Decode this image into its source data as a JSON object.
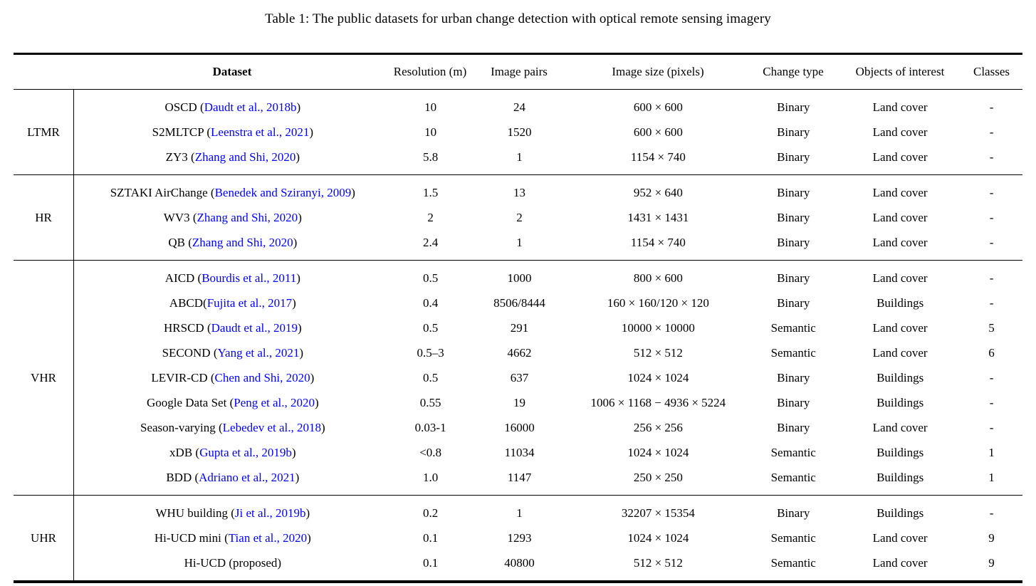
{
  "colors": {
    "citation_blue": "#0000FF",
    "text": "#000000"
  },
  "title": "Table 1: The public datasets for urban change detection with optical remote sensing imagery",
  "table": {
    "headers": [
      "Dataset",
      "Resolution (m)",
      "Image pairs",
      "Image size (pixels)",
      "Change type",
      "Objects of interest",
      "Classes"
    ],
    "groups": [
      {
        "label": "LTMR",
        "rows": [
          {
            "dataset_prefix": "OSCD (",
            "citation": "Daudt et al., 2018b",
            "dataset_suffix": ")",
            "resolution": "10",
            "image_pairs": "24",
            "image_size": "600 × 600",
            "change_type": "Binary",
            "objects": "Land cover",
            "classes": "-"
          },
          {
            "dataset_prefix": "S2MLTCP (",
            "citation": "Leenstra et al., 2021",
            "dataset_suffix": ")",
            "resolution": "10",
            "image_pairs": "1520",
            "image_size": "600 × 600",
            "change_type": "Binary",
            "objects": "Land cover",
            "classes": "-"
          },
          {
            "dataset_prefix": "ZY3 (",
            "citation": "Zhang and Shi, 2020",
            "dataset_suffix": ")",
            "resolution": "5.8",
            "image_pairs": "1",
            "image_size": "1154 × 740",
            "change_type": "Binary",
            "objects": "Land cover",
            "classes": "-"
          }
        ]
      },
      {
        "label": "HR",
        "rows": [
          {
            "dataset_prefix": "SZTAKI AirChange (",
            "citation": "Benedek and Sziranyi, 2009",
            "dataset_suffix": ")",
            "resolution": "1.5",
            "image_pairs": "13",
            "image_size": "952 × 640",
            "change_type": "Binary",
            "objects": "Land cover",
            "classes": "-"
          },
          {
            "dataset_prefix": "WV3 (",
            "citation": "Zhang and Shi, 2020",
            "dataset_suffix": ")",
            "resolution": "2",
            "image_pairs": "2",
            "image_size": "1431 × 1431",
            "change_type": "Binary",
            "objects": "Land cover",
            "classes": "-"
          },
          {
            "dataset_prefix": "QB (",
            "citation": "Zhang and Shi, 2020",
            "dataset_suffix": ")",
            "resolution": "2.4",
            "image_pairs": "1",
            "image_size": "1154 × 740",
            "change_type": "Binary",
            "objects": "Land cover",
            "classes": "-"
          }
        ]
      },
      {
        "label": "VHR",
        "rows": [
          {
            "dataset_prefix": "AICD (",
            "citation": "Bourdis et al., 2011",
            "dataset_suffix": ")",
            "resolution": "0.5",
            "image_pairs": "1000",
            "image_size": "800 × 600",
            "change_type": "Binary",
            "objects": "Land cover",
            "classes": "-"
          },
          {
            "dataset_prefix": "ABCD(",
            "citation": "Fujita et al., 2017",
            "dataset_suffix": ")",
            "resolution": "0.4",
            "image_pairs": "8506/8444",
            "image_size": "160 × 160/120 × 120",
            "change_type": "Binary",
            "objects": "Buildings",
            "classes": "-"
          },
          {
            "dataset_prefix": "HRSCD (",
            "citation": "Daudt et al., 2019",
            "dataset_suffix": ")",
            "resolution": "0.5",
            "image_pairs": "291",
            "image_size": "10000 × 10000",
            "change_type": "Semantic",
            "objects": "Land cover",
            "classes": "5"
          },
          {
            "dataset_prefix": "SECOND (",
            "citation": "Yang et al., 2021",
            "dataset_suffix": ")",
            "resolution": "0.5–3",
            "image_pairs": "4662",
            "image_size": "512 × 512",
            "change_type": "Semantic",
            "objects": "Land cover",
            "classes": "6"
          },
          {
            "dataset_prefix": "LEVIR-CD (",
            "citation": "Chen and Shi, 2020",
            "dataset_suffix": ")",
            "resolution": "0.5",
            "image_pairs": "637",
            "image_size": "1024 × 1024",
            "change_type": "Binary",
            "objects": "Buildings",
            "classes": "-"
          },
          {
            "dataset_prefix": "Google Data Set (",
            "citation": "Peng et al., 2020",
            "dataset_suffix": ")",
            "resolution": "0.55",
            "image_pairs": "19",
            "image_size": "1006 × 1168 − 4936 × 5224",
            "change_type": "Binary",
            "objects": "Buildings",
            "classes": "-"
          },
          {
            "dataset_prefix": "Season-varying (",
            "citation": "Lebedev et al., 2018",
            "dataset_suffix": ")",
            "resolution": "0.03-1",
            "image_pairs": "16000",
            "image_size": "256 × 256",
            "change_type": "Binary",
            "objects": "Land cover",
            "classes": "-"
          },
          {
            "dataset_prefix": "xDB (",
            "citation": "Gupta et al., 2019b",
            "dataset_suffix": ")",
            "resolution": "<0.8",
            "image_pairs": "11034",
            "image_size": "1024 × 1024",
            "change_type": "Semantic",
            "objects": "Buildings",
            "classes": "1"
          },
          {
            "dataset_prefix": "BDD (",
            "citation": "Adriano et al., 2021",
            "dataset_suffix": ")",
            "resolution": "1.0",
            "image_pairs": "1147",
            "image_size": "250 × 250",
            "change_type": "Semantic",
            "objects": "Buildings",
            "classes": "1"
          }
        ]
      },
      {
        "label": "UHR",
        "rows": [
          {
            "dataset_prefix": "WHU building (",
            "citation": "Ji et al., 2019b",
            "dataset_suffix": ")",
            "resolution": "0.2",
            "image_pairs": "1",
            "image_size": "32207 × 15354",
            "change_type": "Binary",
            "objects": "Buildings",
            "classes": "-"
          },
          {
            "dataset_prefix": "Hi-UCD mini (",
            "citation": "Tian et al., 2020",
            "dataset_suffix": ")",
            "resolution": "0.1",
            "image_pairs": "1293",
            "image_size": "1024 × 1024",
            "change_type": "Semantic",
            "objects": "Land cover",
            "classes": "9"
          },
          {
            "dataset_prefix": "Hi-UCD (proposed)",
            "citation": "",
            "dataset_suffix": "",
            "resolution": "0.1",
            "image_pairs": "40800",
            "image_size": "512 × 512",
            "change_type": "Semantic",
            "objects": "Land cover",
            "classes": "9"
          }
        ]
      }
    ]
  }
}
